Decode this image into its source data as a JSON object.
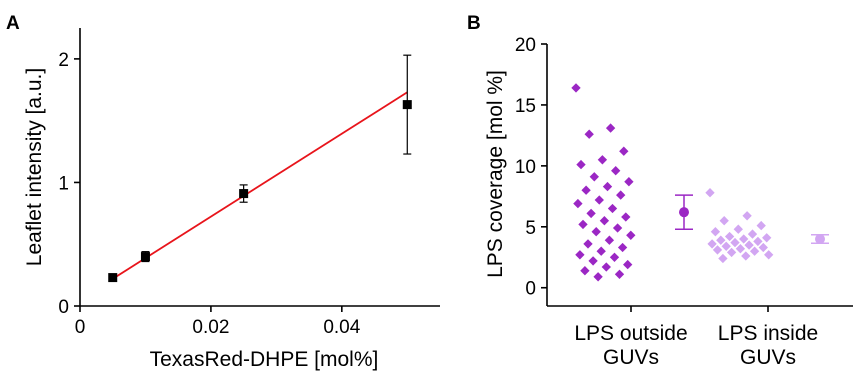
{
  "chart_data": [
    {
      "panel": "A",
      "type": "scatter",
      "xlabel": "TexasRed-DHPE [mol%]",
      "ylabel": "Leaflet intensity [a.u.]",
      "xlim": [
        0,
        0.055
      ],
      "ylim": [
        0,
        2.25
      ],
      "x_ticks": [
        0,
        0.02,
        0.04
      ],
      "x_tick_labels": [
        "0",
        "0.02",
        "0.04"
      ],
      "y_ticks": [
        0,
        1,
        2
      ],
      "y_tick_labels": [
        "0",
        "1",
        "2"
      ],
      "points": [
        {
          "x": 0.005,
          "y": 0.23,
          "err": 0.02
        },
        {
          "x": 0.01,
          "y": 0.4,
          "err": 0.04
        },
        {
          "x": 0.025,
          "y": 0.91,
          "err": 0.07
        },
        {
          "x": 0.05,
          "y": 1.63,
          "err": 0.4
        }
      ],
      "fit_line": {
        "x": [
          0.005,
          0.05
        ],
        "y": [
          0.22,
          1.73
        ]
      },
      "colors": {
        "points": "#000000",
        "fit": "#e8141b"
      }
    },
    {
      "panel": "B",
      "type": "scatter",
      "xlabel": "",
      "ylabel": "LPS coverage [mol %]",
      "ylim": [
        -1.5,
        20
      ],
      "y_ticks": [
        0,
        5,
        10,
        15,
        20
      ],
      "y_tick_labels": [
        "0",
        "5",
        "10",
        "15",
        "20"
      ],
      "categories": [
        [
          "LPS outside",
          "GUVs"
        ],
        [
          "LPS inside",
          "GUVs"
        ]
      ],
      "series": [
        {
          "values": [
            16.4,
            13.1,
            12.6,
            11.2,
            10.5,
            10.1,
            9.6,
            9.1,
            8.7,
            8.3,
            8.0,
            7.6,
            7.2,
            6.9,
            6.5,
            6.1,
            5.8,
            5.5,
            5.2,
            4.9,
            4.6,
            4.3,
            3.9,
            3.6,
            3.3,
            3.0,
            2.7,
            2.5,
            2.2,
            1.9,
            1.7,
            1.4,
            1.1,
            0.9
          ],
          "mean": 6.2,
          "mean_err": 1.4,
          "color": "#9b27c4"
        },
        {
          "values": [
            7.8,
            5.9,
            5.5,
            5.1,
            4.8,
            4.6,
            4.4,
            4.2,
            4.1,
            4.0,
            3.9,
            3.8,
            3.7,
            3.6,
            3.5,
            3.4,
            3.3,
            3.2,
            3.1,
            3.0,
            2.9,
            2.7,
            2.6,
            2.4
          ],
          "mean": 4.0,
          "mean_err": 0.35,
          "color": "#d2a6f2"
        }
      ]
    }
  ]
}
